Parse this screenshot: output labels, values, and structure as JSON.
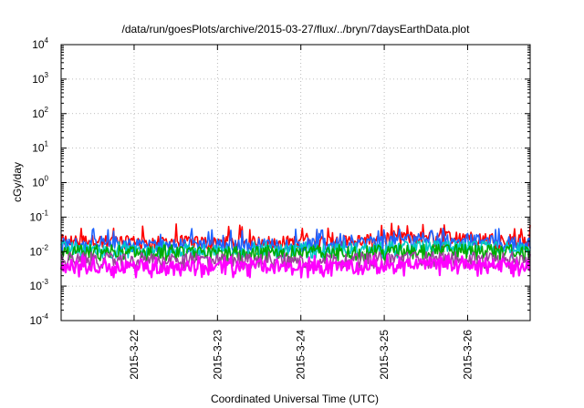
{
  "chart_data": {
    "type": "line",
    "title": "/data/run/goesPlots/archive/2015-03-27/flux/../bryn/7daysEarthData.plot",
    "xlabel": "Coordinated Universal Time (UTC)",
    "ylabel": "cGy/day",
    "yscale": "log",
    "ylim": [
      0.0001,
      10000
    ],
    "xlim": [
      "2015-03-21T03:00",
      "2015-03-26T18:00"
    ],
    "grid": true,
    "legend": "none",
    "y_ticks": [
      {
        "base": "10",
        "exp": "-4"
      },
      {
        "base": "10",
        "exp": "-3"
      },
      {
        "base": "10",
        "exp": "-2"
      },
      {
        "base": "10",
        "exp": "-1"
      },
      {
        "base": "10",
        "exp": "0"
      },
      {
        "base": "10",
        "exp": "1"
      },
      {
        "base": "10",
        "exp": "2"
      },
      {
        "base": "10",
        "exp": "3"
      },
      {
        "base": "10",
        "exp": "4"
      }
    ],
    "x_ticks": [
      "2015-3-22",
      "2015-3-23",
      "2015-3-24",
      "2015-3-25",
      "2015-3-26"
    ],
    "series": [
      {
        "color": "#ff0000",
        "typical": 0.022,
        "peak": 0.07,
        "x": [
          "2015-03-21",
          "2015-03-22",
          "2015-03-23",
          "2015-03-24",
          "2015-03-25",
          "2015-03-26"
        ],
        "y": [
          0.022,
          0.02,
          0.02,
          0.021,
          0.03,
          0.022
        ]
      },
      {
        "color": "#1e64ff",
        "typical": 0.018,
        "peak": 0.05,
        "x": [
          "2015-03-21",
          "2015-03-22",
          "2015-03-23",
          "2015-03-24",
          "2015-03-25",
          "2015-03-26"
        ],
        "y": [
          0.018,
          0.017,
          0.017,
          0.018,
          0.026,
          0.018
        ]
      },
      {
        "color": "#00c8c8",
        "typical": 0.012,
        "peak": 0.02,
        "x": [
          "2015-03-21",
          "2015-03-22",
          "2015-03-23",
          "2015-03-24",
          "2015-03-25",
          "2015-03-26"
        ],
        "y": [
          0.012,
          0.011,
          0.011,
          0.012,
          0.015,
          0.012
        ]
      },
      {
        "color": "#00aa00",
        "typical": 0.01,
        "peak": 0.016,
        "x": [
          "2015-03-21",
          "2015-03-22",
          "2015-03-23",
          "2015-03-24",
          "2015-03-25",
          "2015-03-26"
        ],
        "y": [
          0.01,
          0.0095,
          0.0095,
          0.01,
          0.012,
          0.01
        ]
      },
      {
        "color": "#a040a0",
        "typical": 0.006,
        "peak": 0.01,
        "x": [
          "2015-03-21",
          "2015-03-22",
          "2015-03-23",
          "2015-03-24",
          "2015-03-25",
          "2015-03-26"
        ],
        "y": [
          0.006,
          0.006,
          0.006,
          0.006,
          0.007,
          0.006
        ]
      },
      {
        "color": "#ff00ff",
        "typical": 0.004,
        "peak": 0.008,
        "low": 0.0018,
        "x": [
          "2015-03-21",
          "2015-03-22",
          "2015-03-23",
          "2015-03-24",
          "2015-03-25",
          "2015-03-26"
        ],
        "y": [
          0.004,
          0.0038,
          0.0038,
          0.004,
          0.0045,
          0.004
        ]
      }
    ]
  }
}
